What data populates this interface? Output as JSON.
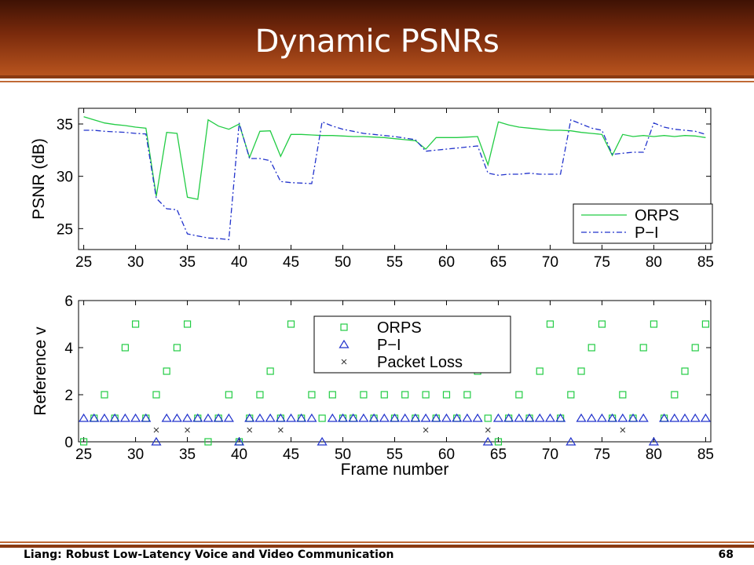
{
  "slide": {
    "title": "Dynamic PSNRs",
    "footer_left": "Liang: Robust Low-Latency Voice and Video Communication",
    "footer_right": "68"
  },
  "colors": {
    "orps": "#22cc44",
    "pi": "#2233cc",
    "loss": "#333333",
    "header_dark": "#3e1204",
    "header_light": "#b8541e"
  },
  "chart_data": [
    {
      "type": "line",
      "title": "",
      "xlabel": "",
      "ylabel": "PSNR (dB)",
      "xlim": [
        24.5,
        85.5
      ],
      "ylim": [
        23,
        36.5
      ],
      "xticks": [
        25,
        30,
        35,
        40,
        45,
        50,
        55,
        60,
        65,
        70,
        75,
        80,
        85
      ],
      "yticks": [
        25,
        30,
        35
      ],
      "legend": "bottom-right",
      "grid": false,
      "x": [
        25,
        26,
        27,
        28,
        29,
        30,
        31,
        32,
        33,
        34,
        35,
        36,
        37,
        38,
        39,
        40,
        41,
        42,
        43,
        44,
        45,
        46,
        47,
        48,
        49,
        50,
        51,
        52,
        53,
        54,
        55,
        56,
        57,
        58,
        59,
        60,
        61,
        62,
        63,
        64,
        65,
        66,
        67,
        68,
        69,
        70,
        71,
        72,
        73,
        74,
        75,
        76,
        77,
        78,
        79,
        80,
        81,
        82,
        83,
        84,
        85
      ],
      "series": [
        {
          "name": "ORPS",
          "style": "solid",
          "values": [
            35.7,
            35.4,
            35.1,
            34.95,
            34.85,
            34.7,
            34.6,
            28.1,
            34.2,
            34.1,
            28.0,
            27.8,
            35.4,
            34.8,
            34.5,
            35.0,
            31.8,
            34.3,
            34.35,
            31.9,
            34.0,
            34.0,
            33.95,
            33.9,
            33.9,
            33.85,
            33.8,
            33.8,
            33.75,
            33.7,
            33.6,
            33.5,
            33.4,
            32.6,
            33.7,
            33.7,
            33.7,
            33.75,
            33.8,
            31.1,
            35.2,
            34.9,
            34.7,
            34.6,
            34.5,
            34.4,
            34.4,
            34.35,
            34.2,
            34.1,
            34.0,
            32.0,
            34.0,
            33.8,
            33.9,
            33.8,
            33.9,
            33.8,
            33.9,
            33.85,
            33.7
          ]
        },
        {
          "name": "P−I",
          "style": "dashdot",
          "values": [
            34.4,
            34.4,
            34.3,
            34.25,
            34.2,
            34.1,
            34.05,
            27.9,
            26.9,
            26.8,
            24.5,
            24.3,
            24.1,
            24.05,
            23.95,
            35.1,
            31.7,
            31.7,
            31.5,
            29.5,
            29.4,
            29.35,
            29.3,
            35.2,
            34.8,
            34.5,
            34.3,
            34.1,
            34.0,
            33.9,
            33.8,
            33.65,
            33.5,
            32.4,
            32.5,
            32.6,
            32.7,
            32.8,
            32.9,
            30.3,
            30.1,
            30.2,
            30.2,
            30.3,
            30.2,
            30.2,
            30.2,
            35.4,
            35.0,
            34.6,
            34.4,
            32.1,
            32.2,
            32.3,
            32.3,
            35.1,
            34.7,
            34.5,
            34.4,
            34.3,
            34.0
          ]
        }
      ]
    },
    {
      "type": "scatter",
      "title": "",
      "xlabel": "Frame number",
      "ylabel": "Reference v",
      "xlim": [
        24.5,
        85.5
      ],
      "ylim": [
        0,
        6
      ],
      "xticks": [
        25,
        30,
        35,
        40,
        45,
        50,
        55,
        60,
        65,
        70,
        75,
        80,
        85
      ],
      "yticks": [
        0,
        2,
        4,
        6
      ],
      "legend": "top-center",
      "grid": false,
      "series": [
        {
          "name": "ORPS",
          "marker": "square",
          "x": [
            25,
            26,
            27,
            28,
            29,
            30,
            31,
            32,
            33,
            34,
            35,
            36,
            37,
            38,
            39,
            40,
            41,
            42,
            43,
            44,
            45,
            46,
            47,
            48,
            49,
            50,
            51,
            52,
            53,
            54,
            55,
            56,
            57,
            58,
            59,
            60,
            61,
            62,
            63,
            64,
            65,
            66,
            67,
            68,
            69,
            70,
            71,
            72,
            73,
            74,
            75,
            76,
            77,
            78,
            79,
            80,
            81,
            82,
            83,
            84,
            85
          ],
          "y": [
            0,
            1,
            2,
            1,
            4,
            5,
            1,
            2,
            3,
            4,
            5,
            1,
            0,
            1,
            2,
            0,
            1,
            2,
            3,
            1,
            5,
            1,
            2,
            1,
            2,
            1,
            1,
            2,
            1,
            2,
            1,
            2,
            1,
            2,
            1,
            2,
            1,
            2,
            3,
            1,
            0,
            1,
            2,
            1,
            3,
            5,
            1,
            2,
            3,
            4,
            5,
            1,
            2,
            1,
            4,
            5,
            1,
            2,
            3,
            4,
            5
          ]
        },
        {
          "name": "P−I",
          "marker": "triangle",
          "x": [
            25,
            26,
            27,
            28,
            29,
            30,
            31,
            32,
            33,
            34,
            35,
            36,
            37,
            38,
            39,
            40,
            41,
            42,
            43,
            44,
            45,
            46,
            47,
            48,
            49,
            50,
            51,
            52,
            53,
            54,
            55,
            56,
            57,
            58,
            59,
            60,
            61,
            62,
            63,
            64,
            65,
            66,
            67,
            68,
            69,
            70,
            71,
            72,
            73,
            74,
            75,
            76,
            77,
            78,
            79,
            80,
            81,
            82,
            83,
            84,
            85
          ],
          "y": [
            1,
            1,
            1,
            1,
            1,
            1,
            1,
            0,
            1,
            1,
            1,
            1,
            1,
            1,
            1,
            0,
            1,
            1,
            1,
            1,
            1,
            1,
            1,
            0,
            1,
            1,
            1,
            1,
            1,
            1,
            1,
            1,
            1,
            1,
            1,
            1,
            1,
            1,
            1,
            0,
            1,
            1,
            1,
            1,
            1,
            1,
            1,
            0,
            1,
            1,
            1,
            1,
            1,
            1,
            1,
            0,
            1,
            1,
            1,
            1,
            1
          ]
        },
        {
          "name": "Packet Loss",
          "marker": "x",
          "x": [
            32,
            35,
            41,
            44,
            58,
            64,
            77
          ],
          "y": [
            0.5,
            0.5,
            0.5,
            0.5,
            0.5,
            0.5,
            0.5
          ]
        }
      ]
    }
  ]
}
